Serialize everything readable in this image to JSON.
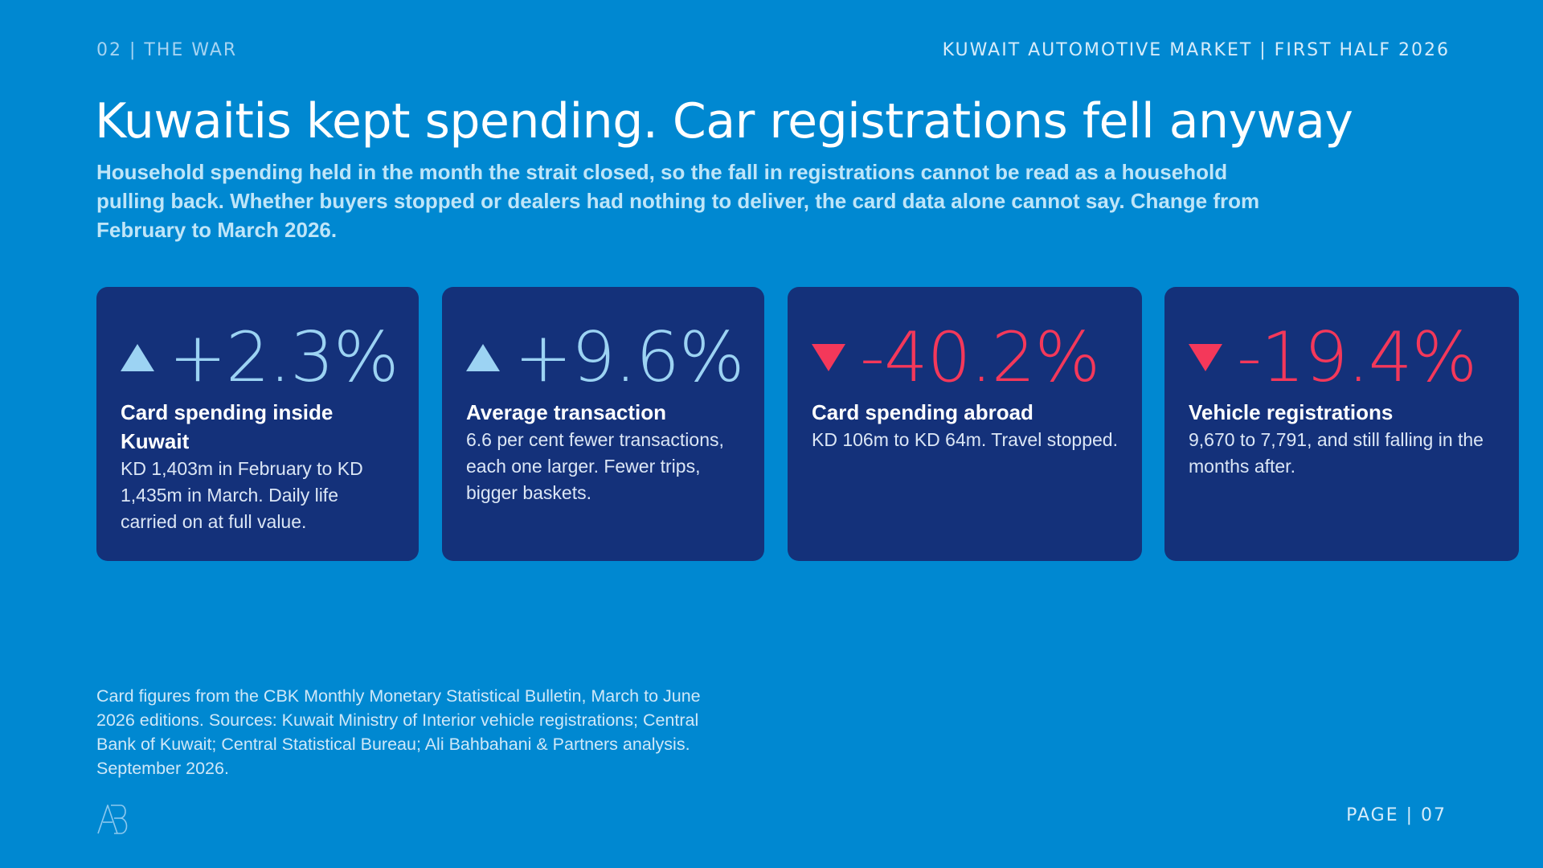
{
  "header": {
    "section": "02 | THE WAR",
    "report": "KUWAIT AUTOMOTIVE MARKET | FIRST HALF 2026"
  },
  "title": "Kuwaitis kept spending. Car registrations fell anyway",
  "subtitle": "Household spending held in the month the strait closed, so the fall in registrations cannot be read as a household pulling back. Whether buyers stopped or dealers had nothing to deliver, the card data alone cannot say. Change from February to March 2026.",
  "colors": {
    "background": "#0088d1",
    "card": "#14317a",
    "positive": "#9cd3f3",
    "negative": "#f4385a"
  },
  "cards": [
    {
      "direction": "up",
      "arrow_icon": "triangle-up-icon",
      "value": "+2.3%",
      "label": "Card spending inside Kuwait",
      "description": "KD 1,403m in February to KD 1,435m in March. Daily life carried on at full value."
    },
    {
      "direction": "up",
      "arrow_icon": "triangle-up-icon",
      "value": "+9.6%",
      "label": "Average transaction",
      "description": "6.6 per cent fewer transactions, each one larger. Fewer trips, bigger baskets."
    },
    {
      "direction": "down",
      "arrow_icon": "triangle-down-icon",
      "value": "-40.2%",
      "label": "Card spending abroad",
      "description": "KD 106m to KD 64m. Travel stopped."
    },
    {
      "direction": "down",
      "arrow_icon": "triangle-down-icon",
      "value": "-19.4%",
      "label": "Vehicle registrations",
      "description": "9,670 to 7,791, and still falling in the months after."
    }
  ],
  "footnote": "Card figures from the CBK Monthly Monetary Statistical Bulletin, March to June 2026 editions. Sources: Kuwait Ministry of Interior vehicle registrations; Central Bank of Kuwait; Central Statistical Bureau; Ali Bahbahani & Partners analysis. September 2026.",
  "logo_icon": "ab-monogram-logo",
  "page": "PAGE | 07"
}
